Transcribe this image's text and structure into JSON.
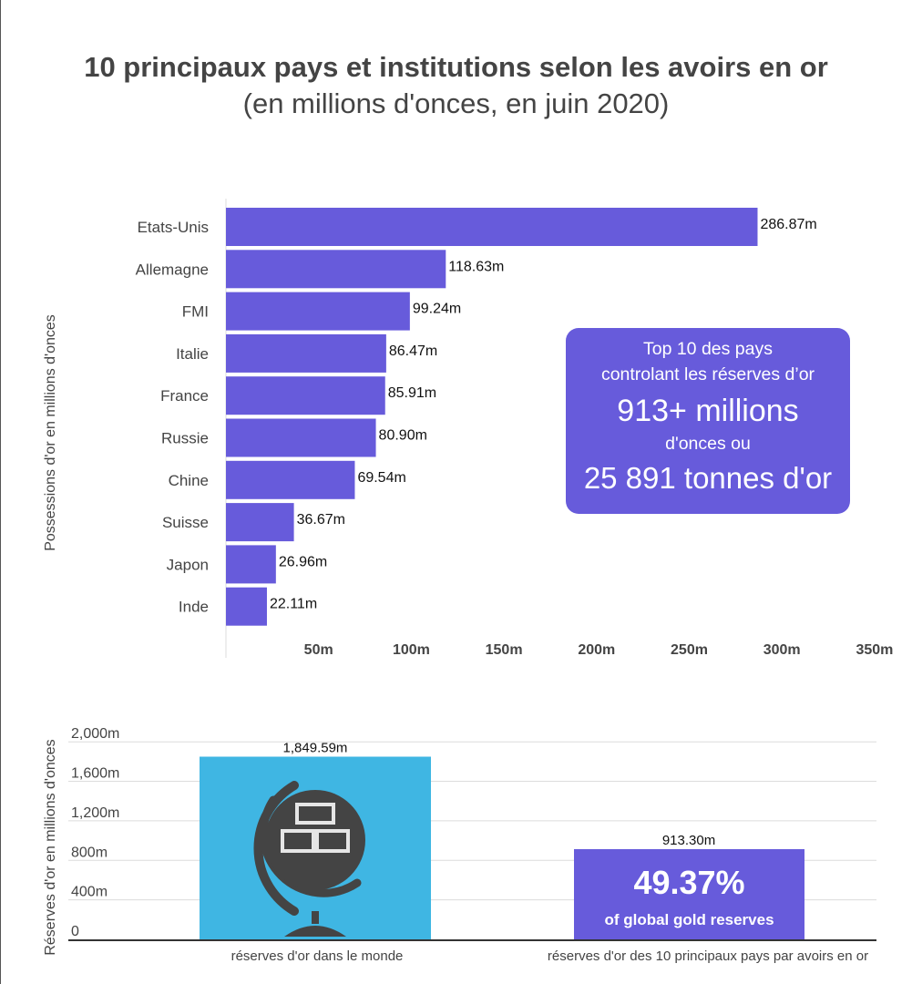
{
  "title": "10 principaux pays et institutions selon les avoirs en or",
  "subtitle": "(en millions d'onces, en juin 2020)",
  "accent_color": "#675bdb",
  "world_bar_color": "#3fb6e3",
  "callout": {
    "line1": "Top 10 des pays",
    "line2": "controlant les réserves d’or",
    "line3": "913+ millions",
    "line4": "d'onces ou",
    "line5": "25 891 tonnes d'or"
  },
  "share": {
    "value": "49.37%",
    "label": "of global gold reserves"
  },
  "globe_icon": "globe-gold-bars-icon",
  "chart_data": [
    {
      "type": "bar",
      "orientation": "horizontal",
      "ylabel": "Possessions d'or en millions d'onces",
      "categories": [
        "Etats-Unis",
        "Allemagne",
        "FMI",
        "Italie",
        "France",
        "Russie",
        "Chine",
        "Suisse",
        "Japon",
        "Inde"
      ],
      "values": [
        286.87,
        118.63,
        99.24,
        86.47,
        85.91,
        80.9,
        69.54,
        36.67,
        26.96,
        22.11
      ],
      "data_labels": [
        "286.87m",
        "118.63m",
        "99.24m",
        "86.47m",
        "85.91m",
        "80.90m",
        "69.54m",
        "36.67m",
        "26.96m",
        "22.11m"
      ],
      "xticks": [
        "50m",
        "100m",
        "150m",
        "200m",
        "250m",
        "300m",
        "350m"
      ],
      "xtick_values": [
        50,
        100,
        150,
        200,
        250,
        300,
        350
      ],
      "xlim": [
        0,
        350
      ],
      "grid": false
    },
    {
      "type": "bar",
      "ylabel": "Réserves d'or en millions d'onces",
      "categories": [
        "réserves d'or dans le monde",
        "réserves d'or des 10 principaux pays par avoirs en or"
      ],
      "values": [
        1849.59,
        913.3
      ],
      "data_labels": [
        "1,849.59m",
        "913.30m"
      ],
      "yticks": [
        "0",
        "400m",
        "800m",
        "1,200m",
        "1,600m",
        "2,000m"
      ],
      "ytick_values": [
        0,
        400,
        800,
        1200,
        1600,
        2000
      ],
      "ylim": [
        0,
        2000
      ],
      "grid": true
    }
  ]
}
